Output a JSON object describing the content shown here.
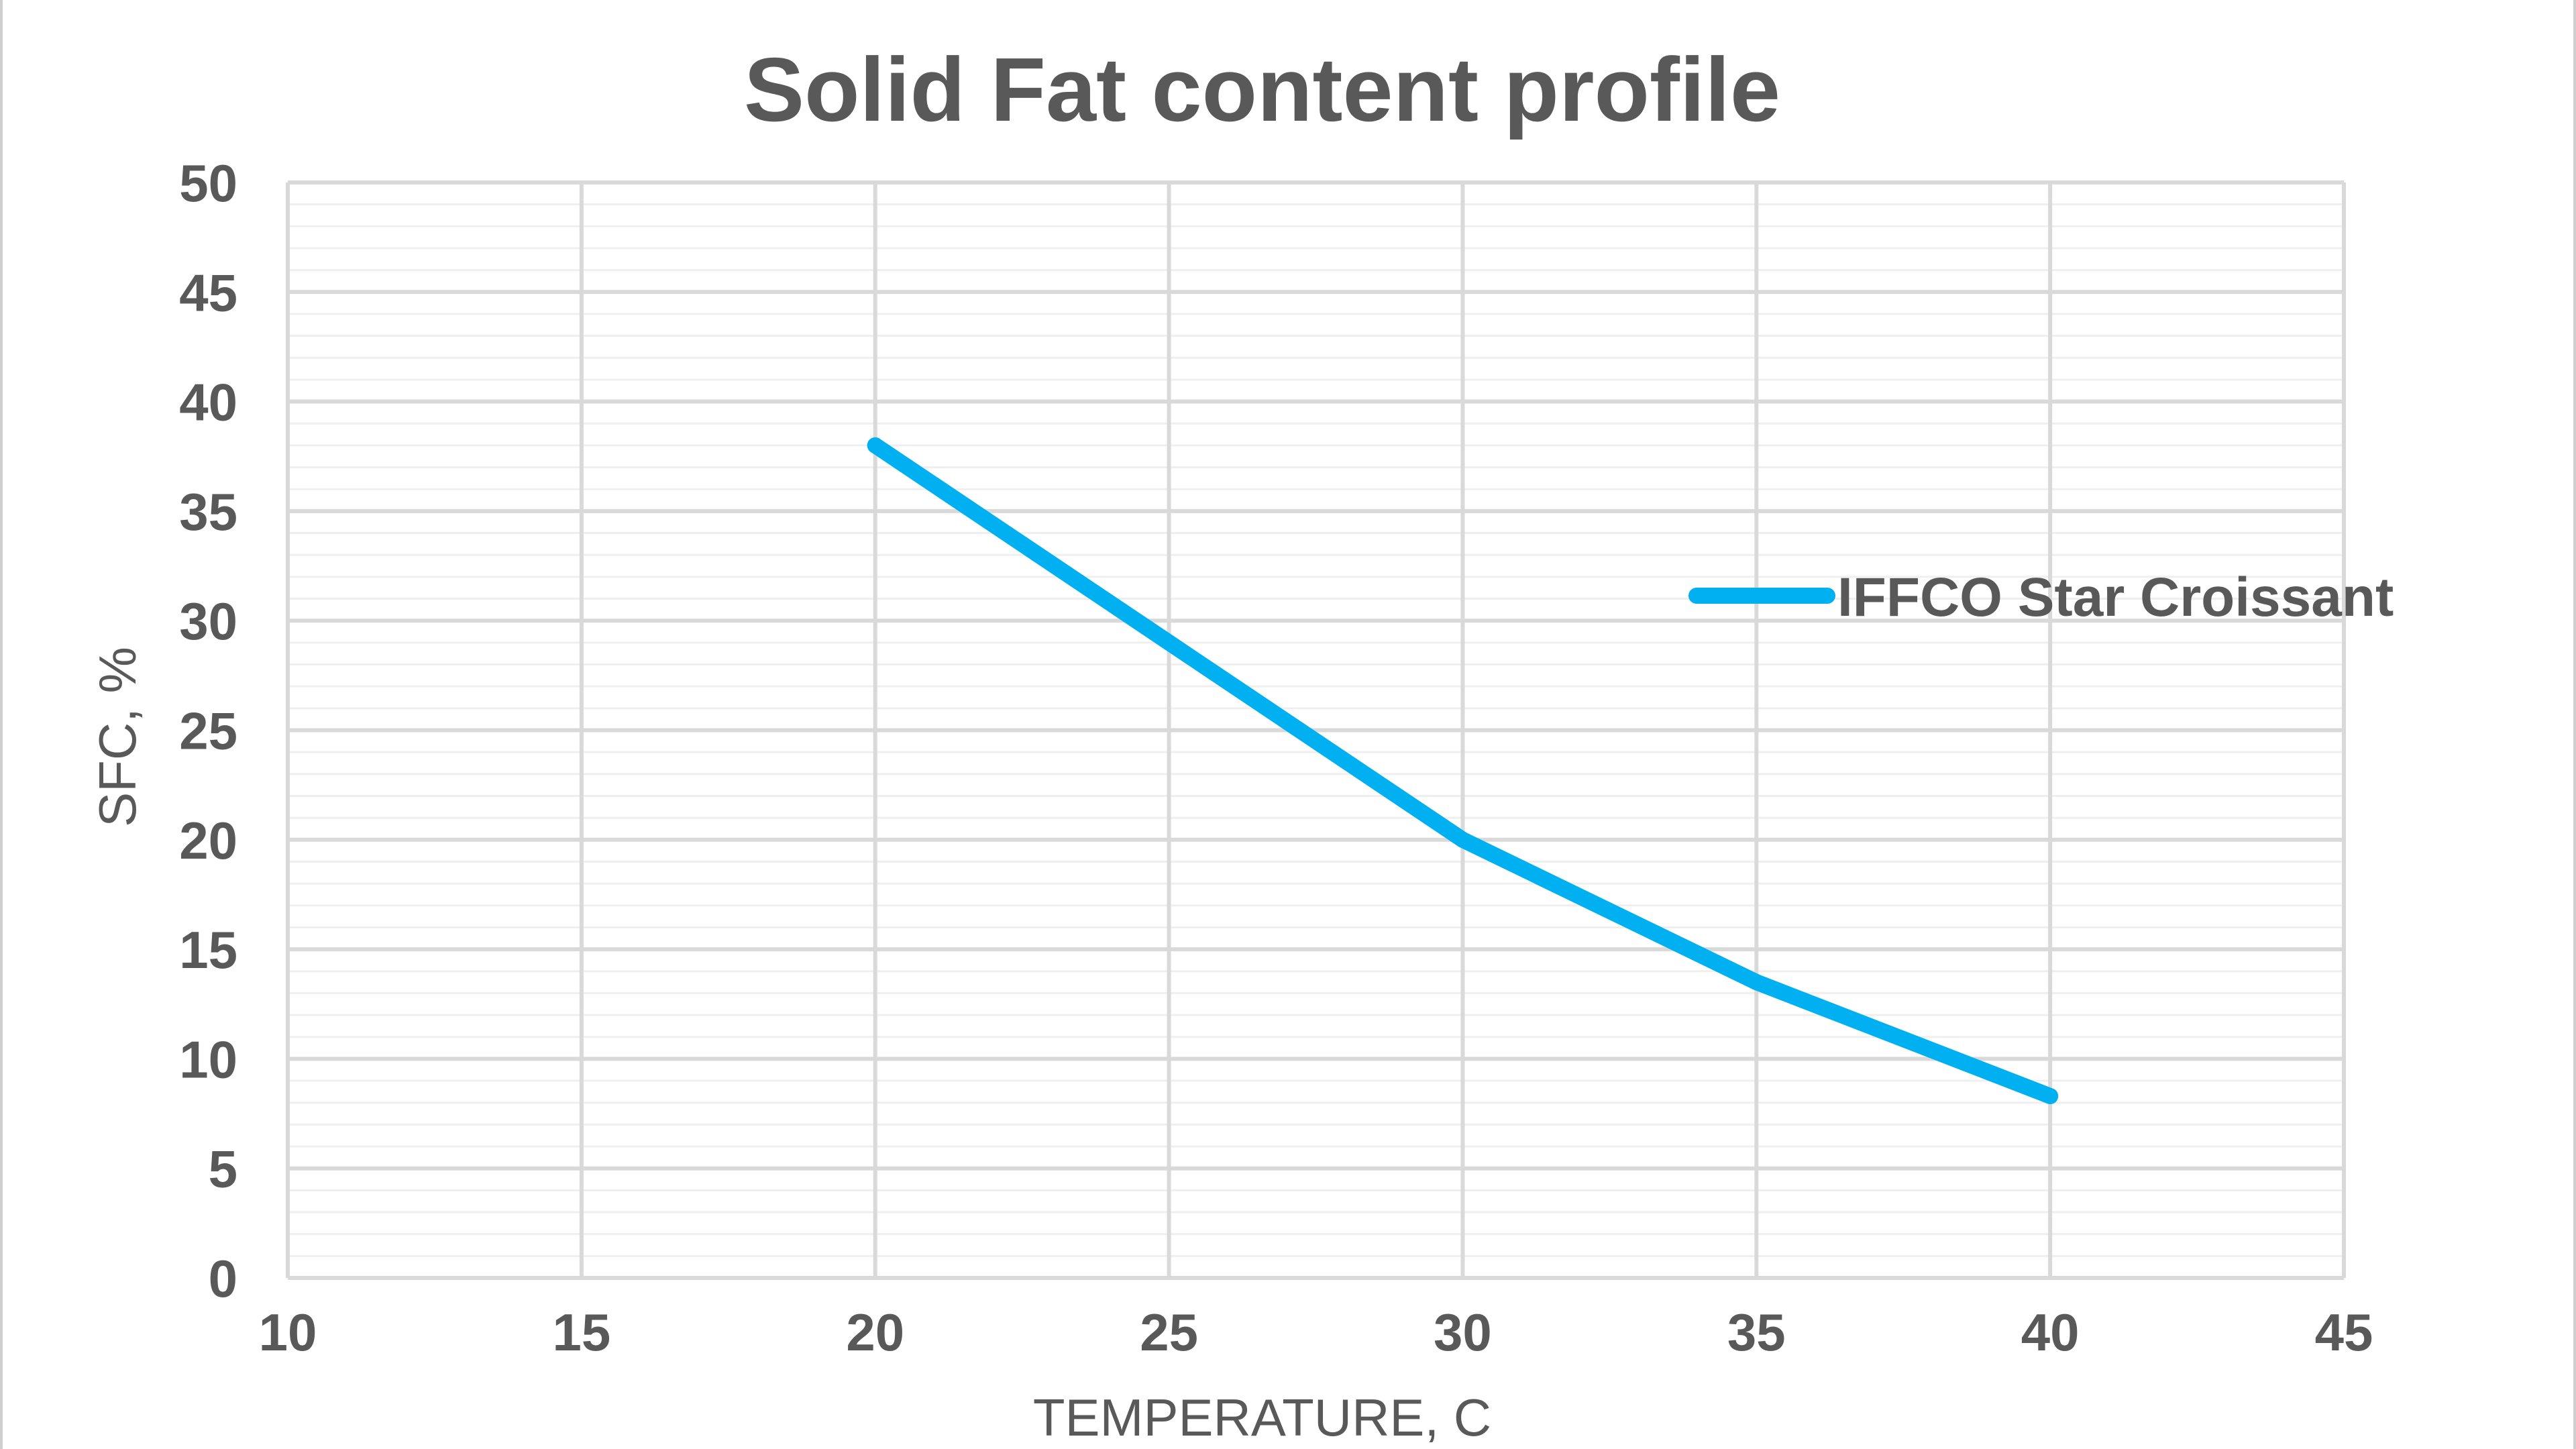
{
  "chart_data": {
    "type": "scatter",
    "title": "Solid Fat content profile",
    "xlabel": "TEMPERATURE, C",
    "ylabel": "SFC, %",
    "xlim": [
      10,
      45
    ],
    "ylim": [
      0,
      50
    ],
    "xticks": [
      10,
      15,
      20,
      25,
      30,
      35,
      40,
      45
    ],
    "yticks": [
      0,
      5,
      10,
      15,
      20,
      25,
      30,
      35,
      40,
      45,
      50
    ],
    "grid": true,
    "legend_position": "right",
    "series": [
      {
        "name": "IFFCO Star Croissant",
        "color": "#00B0F0",
        "line": true,
        "x": [
          20,
          25,
          30,
          35,
          40
        ],
        "y": [
          38,
          29,
          20,
          13.5,
          8.3
        ]
      }
    ]
  }
}
